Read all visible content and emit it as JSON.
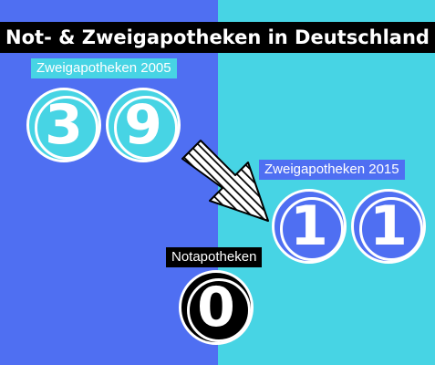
{
  "title": "Not- & Zweigapotheken in Deutschland",
  "colors": {
    "left_bg": "#4f6ff2",
    "right_bg": "#47d4e4",
    "title_bg": "#000000",
    "text": "#ffffff"
  },
  "branch_2005": {
    "label": "Zweigapotheken 2005",
    "digits": [
      "3",
      "9"
    ],
    "value": 39
  },
  "branch_2015": {
    "label": "Zweigapotheken 2015",
    "digits": [
      "1",
      "1"
    ],
    "value": 11
  },
  "emergency": {
    "label": "Notapotheken",
    "digits": [
      "0"
    ],
    "value": 0
  },
  "icons": {
    "arrow": "diagonal-hatched-arrow-icon"
  }
}
